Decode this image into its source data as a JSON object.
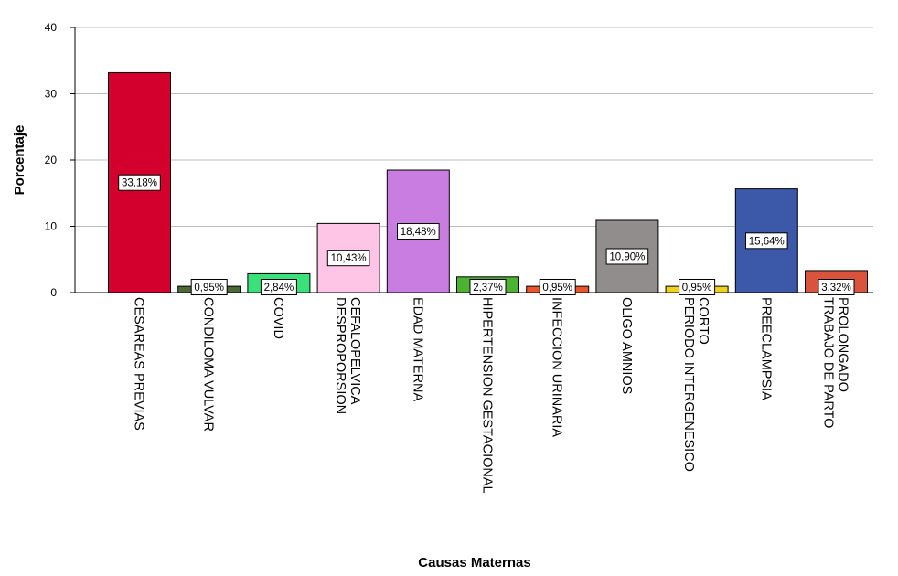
{
  "chart_data": {
    "type": "bar",
    "xlabel": "Causas Maternas",
    "ylabel": "Porcentaje",
    "ylim": [
      0,
      40
    ],
    "yticks": [
      0,
      10,
      20,
      30,
      40
    ],
    "grid": true,
    "categories": [
      [
        "CESAREAS PREVIAS"
      ],
      [
        "CONDILOMA VULVAR"
      ],
      [
        "COVID"
      ],
      [
        "DESPROPORSION",
        "CEFALOPELVICA"
      ],
      [
        "EDAD MATERNA"
      ],
      [
        "HIPERTENSION GESTACIONAL"
      ],
      [
        "INFECCION URINARIA"
      ],
      [
        "OLIGO AMNIOS"
      ],
      [
        "PERIODO INTERGENESICO",
        "CORTO"
      ],
      [
        "PREECLAMPSIA"
      ],
      [
        "TRABAJO DE PARTO",
        "PROLONGADO"
      ]
    ],
    "values": [
      33.18,
      0.95,
      2.84,
      10.43,
      18.48,
      2.37,
      0.95,
      10.9,
      0.95,
      15.64,
      3.32
    ],
    "data_labels": [
      "33,18%",
      "0,95%",
      "2,84%",
      "10,43%",
      "18,48%",
      "2,37%",
      "0,95%",
      "10,90%",
      "0,95%",
      "15,64%",
      "3,32%"
    ],
    "colors": [
      "#d3002e",
      "#4a6b35",
      "#3ae17a",
      "#ffc5e6",
      "#c97de0",
      "#4cb232",
      "#e8562a",
      "#908d8c",
      "#eed21f",
      "#3c58a9",
      "#d9533d"
    ]
  }
}
